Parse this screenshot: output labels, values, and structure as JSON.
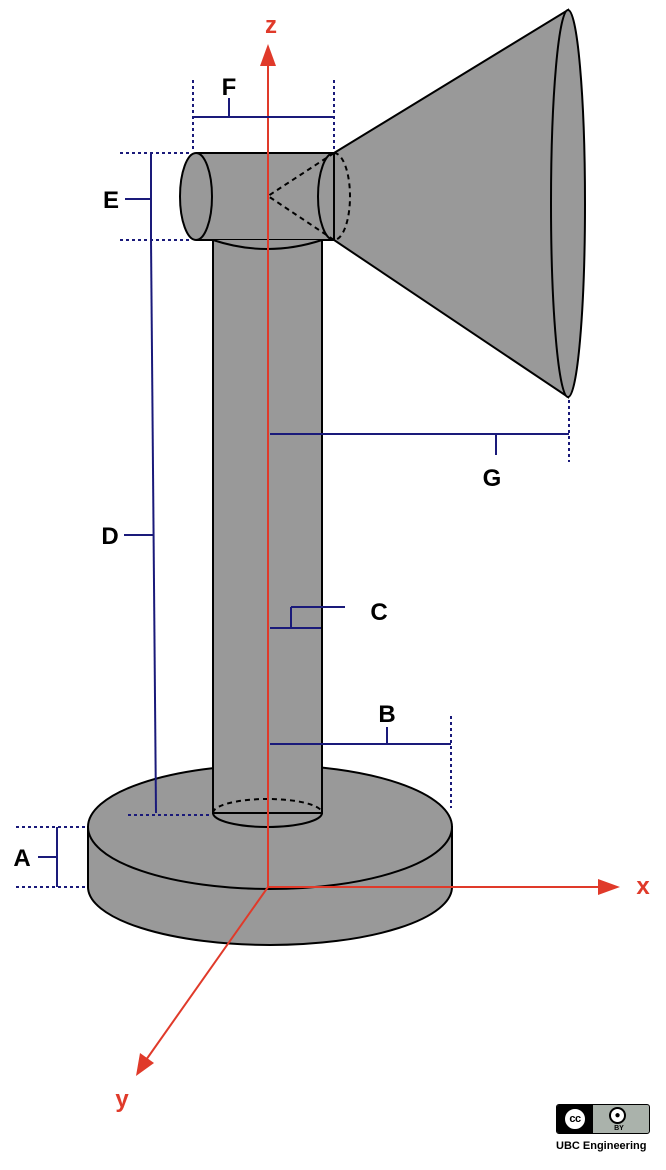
{
  "labels": {
    "A": "A",
    "B": "B",
    "C": "C",
    "D": "D",
    "E": "E",
    "F": "F",
    "G": "G"
  },
  "axes": {
    "x": "x",
    "y": "y",
    "z": "z"
  },
  "colors": {
    "shape_fill": "#999999",
    "axis": "#e03a2a",
    "dimension": "#1a1a7a",
    "outline": "#000000"
  },
  "license": {
    "cc_icon": "cc-icon",
    "cc_text": "cc",
    "by_icon": "attribution-person-icon",
    "by_text": "BY",
    "caption": "UBC Engineering"
  }
}
